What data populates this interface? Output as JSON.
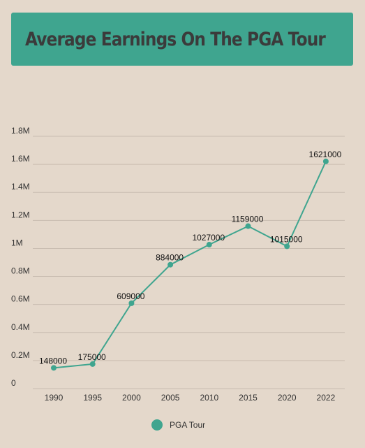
{
  "title": "Average Earnings On The PGA Tour",
  "colors": {
    "accent": "#3fa58f",
    "background": "#e4d8cb",
    "grid": "#c9bdb1"
  },
  "chart_data": {
    "type": "line",
    "categories": [
      "1990",
      "1995",
      "2000",
      "2005",
      "2010",
      "2015",
      "2020",
      "2022"
    ],
    "series": [
      {
        "name": "PGA Tour",
        "values": [
          148000,
          175000,
          609000,
          884000,
          1027000,
          1159000,
          1015000,
          1621000
        ]
      }
    ],
    "y_ticks": [
      "0",
      "0.2M",
      "0.4M",
      "0.6M",
      "0.8M",
      "1M",
      "1.2M",
      "1.4M",
      "1.6M",
      "1.8M"
    ],
    "ylim": [
      0,
      1800000
    ],
    "grid": true,
    "legend": "bottom-center",
    "data_labels": [
      "148000",
      "175000",
      "609000",
      "884000",
      "1027000",
      "1159000",
      "1015000",
      "1621000"
    ]
  }
}
